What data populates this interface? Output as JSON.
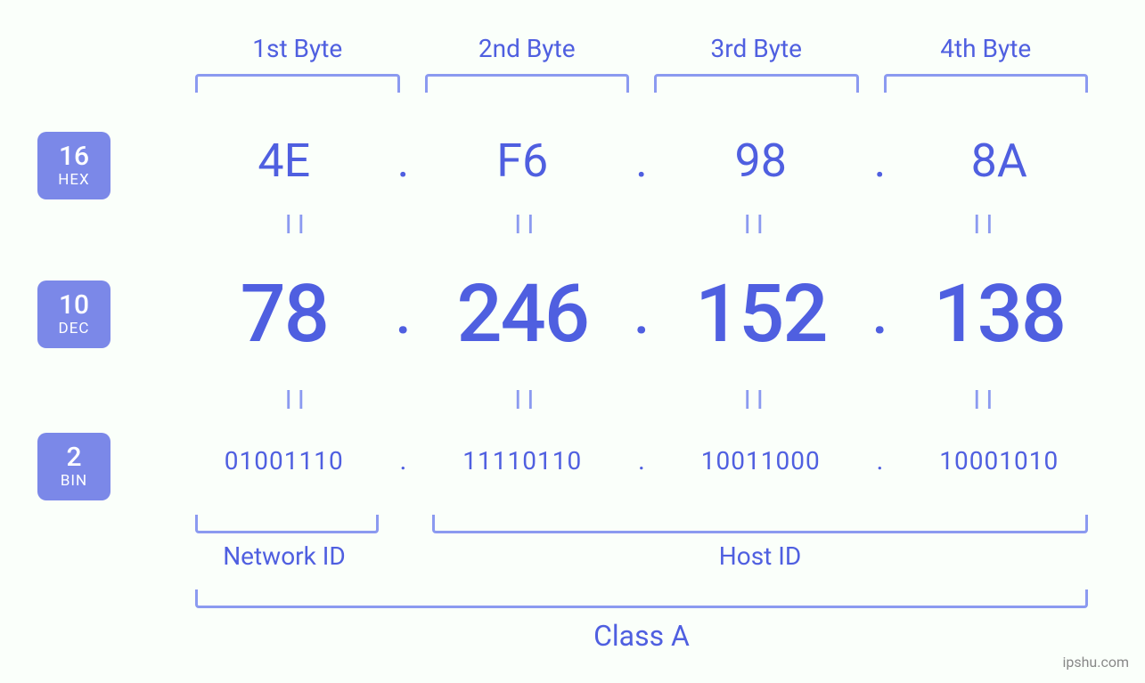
{
  "colors": {
    "primary": "#4f5fe0",
    "light": "#8b9af0",
    "badge": "#7b88e8",
    "background": "#fafffa"
  },
  "byte_headers": [
    "1st Byte",
    "2nd Byte",
    "3rd Byte",
    "4th Byte"
  ],
  "badges": {
    "hex": {
      "num": "16",
      "label": "HEX"
    },
    "dec": {
      "num": "10",
      "label": "DEC"
    },
    "bin": {
      "num": "2",
      "label": "BIN"
    }
  },
  "hex": [
    "4E",
    "F6",
    "98",
    "8A"
  ],
  "dec": [
    "78",
    "246",
    "152",
    "138"
  ],
  "bin": [
    "01001110",
    "11110110",
    "10011000",
    "10001010"
  ],
  "separator": ".",
  "equals": "II",
  "network_id_label": "Network ID",
  "host_id_label": "Host ID",
  "class_label": "Class A",
  "watermark": "ipshu.com",
  "fonts": {
    "header": 28,
    "hex": 52,
    "dec": 90,
    "bin": 28,
    "label": 28,
    "class": 32,
    "badge_num": 30,
    "badge_txt": 17
  }
}
